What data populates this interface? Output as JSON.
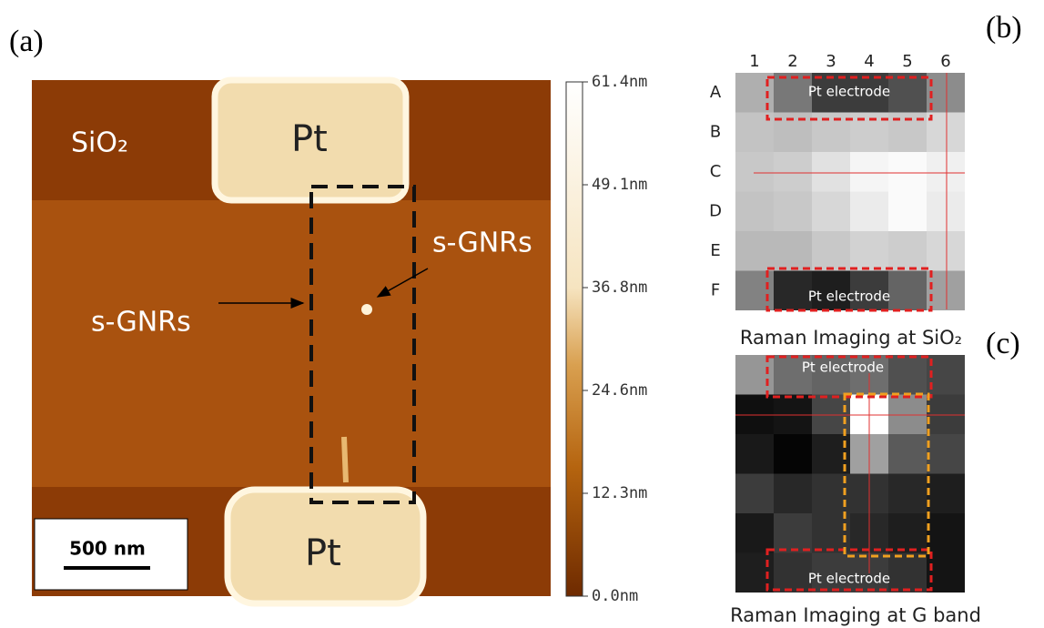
{
  "panels": {
    "a": "(a)",
    "b": "(b)",
    "c": "(c)"
  },
  "afm": {
    "substrate": "SiO₂",
    "electrodes": [
      "Pt",
      "Pt"
    ],
    "gnr_labels": [
      "s-GNRs",
      "s-GNRs"
    ],
    "scale_bar": "500 nm",
    "colorbar_labels": [
      "61.4nm",
      "49.1nm",
      "36.8nm",
      "24.6nm",
      "12.3nm",
      "0.0nm"
    ]
  },
  "raman_sio2": {
    "columns": [
      "1",
      "2",
      "3",
      "4",
      "5",
      "6"
    ],
    "rows": [
      "A",
      "B",
      "C",
      "D",
      "E",
      "F"
    ],
    "electrode_labels": [
      "Pt electrode",
      "Pt electrode"
    ],
    "caption": "Raman Imaging at SiO₂"
  },
  "raman_g": {
    "electrode_labels": [
      "Pt electrode",
      "Pt electrode"
    ],
    "caption": "Raman Imaging at G band"
  }
}
